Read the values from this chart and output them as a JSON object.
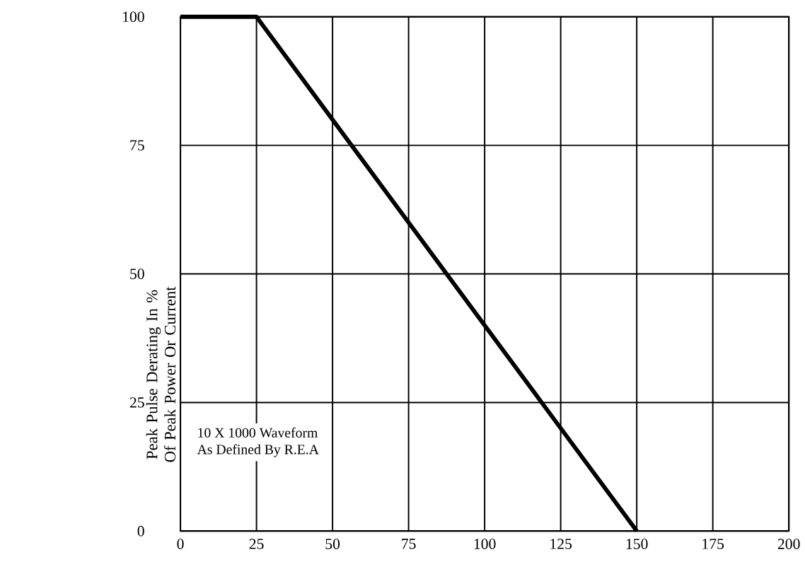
{
  "chart_data": {
    "type": "line",
    "ylabel": "Peak Pulse Derating In % Of Peak Power Or Current",
    "x": [
      0,
      25,
      150
    ],
    "values": [
      100,
      100,
      0
    ],
    "color": "#000000",
    "xlim": [
      0,
      200
    ],
    "xticks": [
      0,
      25,
      50,
      75,
      100,
      125,
      150,
      175,
      200
    ],
    "ylim": [
      0,
      100
    ],
    "yticks": [
      0,
      25,
      50,
      75,
      100
    ],
    "grid": true,
    "line_style": "solid",
    "marker": "none",
    "annotations": [
      "10 X 1000 Waveform",
      "As Defined By R.E.A"
    ]
  }
}
